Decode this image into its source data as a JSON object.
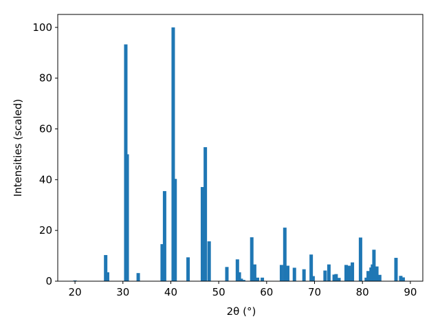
{
  "chart_data": {
    "type": "bar",
    "xlabel": "2θ (°)",
    "ylabel": "Intensities (scaled)",
    "x": [
      20.0,
      26.4,
      26.8,
      30.6,
      30.9,
      33.2,
      38.2,
      38.7,
      40.5,
      40.9,
      43.6,
      46.6,
      47.2,
      48.0,
      51.7,
      53.9,
      54.3,
      54.7,
      55.2,
      56.9,
      57.5,
      58.1,
      59.1,
      63.1,
      63.8,
      64.4,
      65.8,
      67.8,
      69.3,
      69.7,
      72.2,
      73.0,
      74.1,
      74.5,
      75.1,
      76.6,
      77.2,
      77.9,
      79.6,
      80.8,
      81.2,
      81.8,
      82.1,
      82.4,
      83.0,
      83.6,
      87.0,
      88.0,
      88.5
    ],
    "values": [
      0.3,
      10.3,
      3.5,
      93.3,
      50,
      3.2,
      14.6,
      35.5,
      100,
      40.3,
      9.4,
      37.1,
      52.8,
      15.7,
      5.6,
      8.6,
      3.5,
      1,
      0.5,
      17.3,
      6.6,
      1.4,
      1.4,
      6.4,
      21.1,
      6.1,
      5.3,
      4.7,
      10.5,
      2,
      4.2,
      6.6,
      2.6,
      2.8,
      1.3,
      6.4,
      6.1,
      7.4,
      17.2,
      1.4,
      4,
      5.4,
      6.6,
      12.4,
      5.8,
      2.5,
      9.2,
      2.1,
      1.5
    ],
    "color": "#1f77b4",
    "xlim": [
      16.4,
      92.6
    ],
    "ylim": [
      0,
      105.1
    ],
    "xticks": [
      20,
      30,
      40,
      50,
      60,
      70,
      80,
      90
    ],
    "yticks": [
      0,
      20,
      40,
      60,
      80,
      100
    ]
  }
}
